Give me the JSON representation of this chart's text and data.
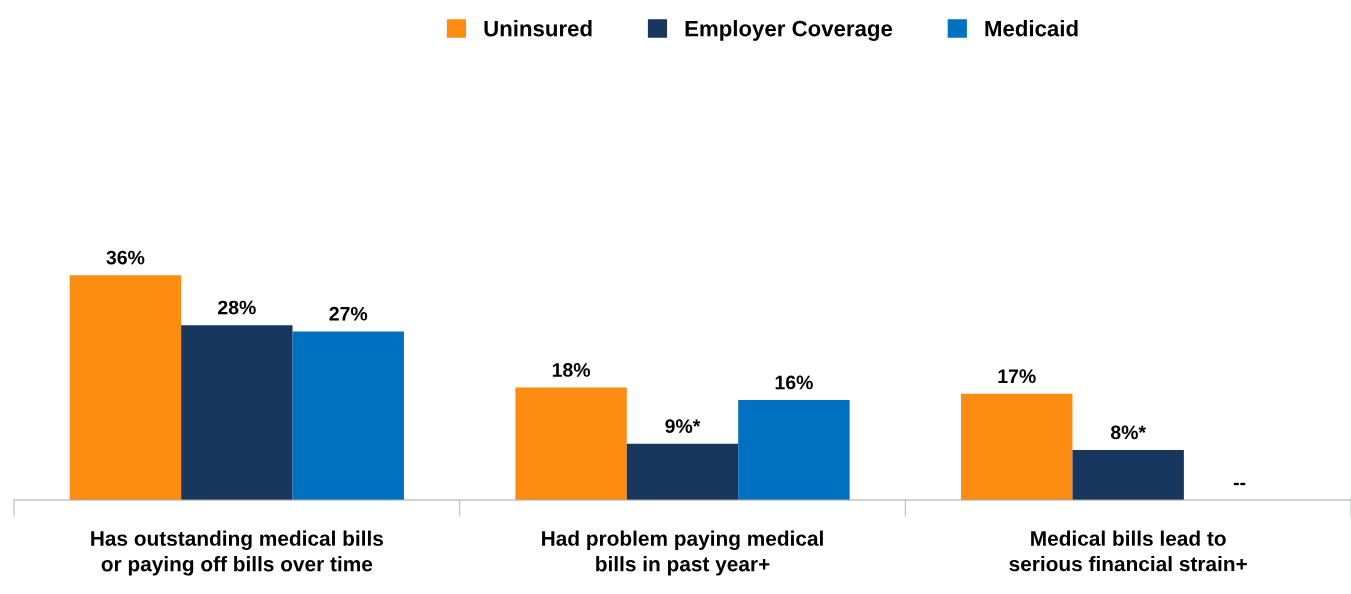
{
  "chart_data": {
    "type": "bar",
    "categories": [
      "Has outstanding medical bills or paying off bills over time",
      "Had problem paying medical bills in past year+",
      "Medical bills lead to serious financial strain+"
    ],
    "series": [
      {
        "name": "Uninsured",
        "color": "#fd8d12",
        "values": [
          36,
          18,
          17
        ],
        "value_labels": [
          "36%",
          "18%",
          "17%"
        ]
      },
      {
        "name": "Employer Coverage",
        "color": "#17375e",
        "values": [
          28,
          9,
          8
        ],
        "value_labels": [
          "28%",
          "9%*",
          "8%*"
        ]
      },
      {
        "name": "Medicaid",
        "color": "#0070c0",
        "values": [
          27,
          16,
          null
        ],
        "value_labels": [
          "27%",
          "16%",
          "--"
        ]
      }
    ],
    "tick_labels": "x",
    "legend": "top",
    "grid": false
  }
}
